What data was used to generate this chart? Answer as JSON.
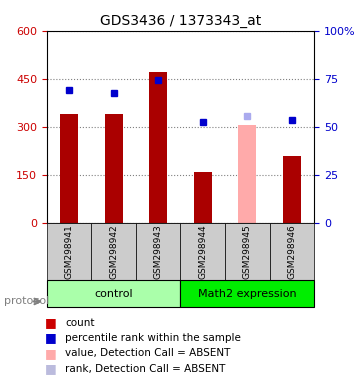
{
  "title": "GDS3436 / 1373343_at",
  "samples": [
    "GSM298941",
    "GSM298942",
    "GSM298943",
    "GSM298944",
    "GSM298945",
    "GSM298946"
  ],
  "bar_values": [
    340,
    340,
    470,
    160,
    305,
    210
  ],
  "bar_colors": [
    "#aa0000",
    "#aa0000",
    "#aa0000",
    "#aa0000",
    "#ffaaaa",
    "#aa0000"
  ],
  "dot_values_left": [
    415,
    405,
    445,
    315,
    335,
    320
  ],
  "dot_colors": [
    "#0000cc",
    "#0000cc",
    "#0000cc",
    "#0000cc",
    "#aaaaee",
    "#0000cc"
  ],
  "ylim_left": [
    0,
    600
  ],
  "ylim_right": [
    0,
    100
  ],
  "yticks_left": [
    0,
    150,
    300,
    450,
    600
  ],
  "yticks_right": [
    0,
    25,
    50,
    75,
    100
  ],
  "ytick_labels_left": [
    "0",
    "150",
    "300",
    "450",
    "600"
  ],
  "ytick_labels_right": [
    "0",
    "25",
    "50",
    "75",
    "100%"
  ],
  "groups": [
    {
      "label": "control",
      "samples": [
        0,
        1,
        2
      ],
      "color": "#aaffaa"
    },
    {
      "label": "Math2 expression",
      "samples": [
        3,
        4,
        5
      ],
      "color": "#00ee00"
    }
  ],
  "protocol_label": "protocol",
  "legend_items": [
    {
      "color": "#cc0000",
      "marker": "s",
      "label": "count"
    },
    {
      "color": "#0000cc",
      "marker": "s",
      "label": "percentile rank within the sample"
    },
    {
      "color": "#ffaaaa",
      "marker": "s",
      "label": "value, Detection Call = ABSENT"
    },
    {
      "color": "#bbbbdd",
      "marker": "s",
      "label": "rank, Detection Call = ABSENT"
    }
  ],
  "left_axis_color": "#cc0000",
  "right_axis_color": "#0000cc",
  "plot_bg": "#ffffff",
  "label_area_bg": "#cccccc",
  "bar_width": 0.4
}
